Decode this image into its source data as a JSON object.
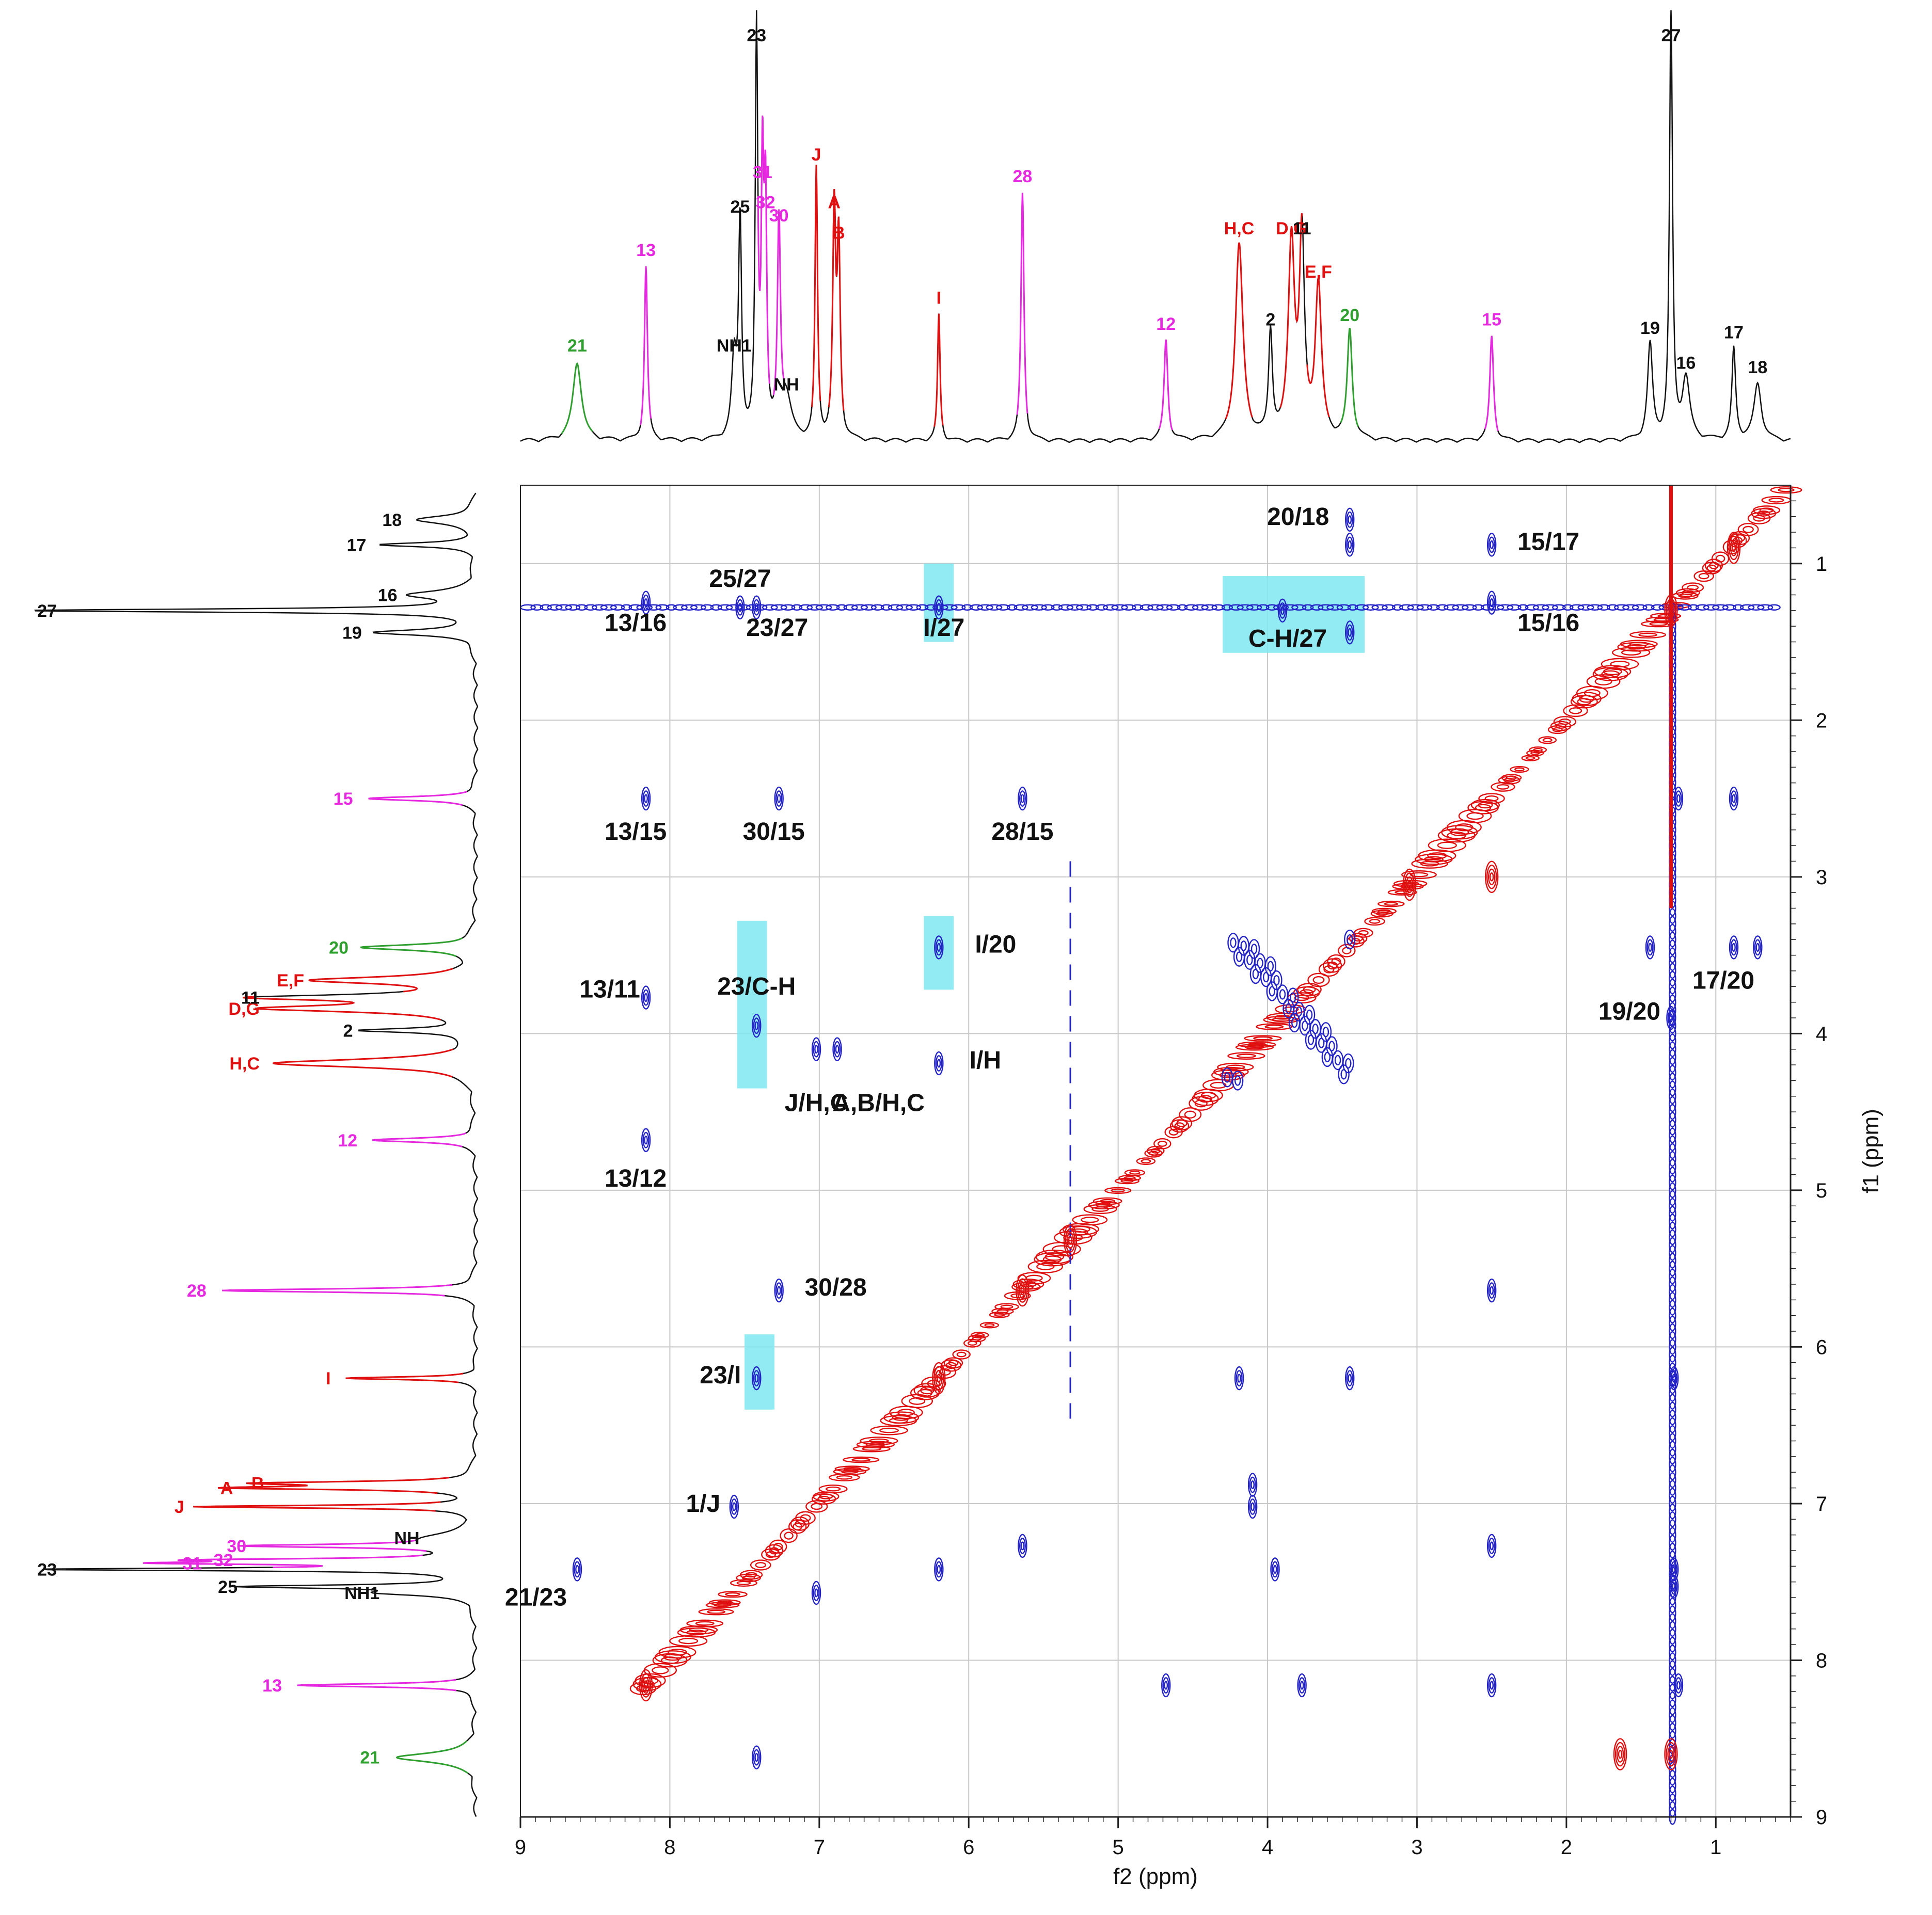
{
  "chart_data": {
    "type": "2D NMR contour map with projected 1D spectra",
    "colors": {
      "positive": "#2323c8",
      "negative": "#e01010",
      "spectrum": "#111111",
      "magenta": "#e628e0",
      "green": "#2fa02f",
      "red": "#e01010",
      "black": "#111111",
      "highlight": "#7fe8f0",
      "grid": "#c8c8c8"
    },
    "x_axis": {
      "label": "f2 (ppm)",
      "range": [
        9,
        0.5
      ],
      "ticks": [
        "9",
        "8",
        "7",
        "6",
        "5",
        "4",
        "3",
        "2",
        "1"
      ]
    },
    "y_axis": {
      "label": "f1 (ppm)",
      "range": [
        0.5,
        9
      ],
      "ticks": [
        "1",
        "2",
        "3",
        "4",
        "5",
        "6",
        "7",
        "8",
        "9"
      ]
    },
    "top_peaks": [
      {
        "label": "21",
        "shift": 8.62,
        "height": 0.18,
        "width": 0.035,
        "color": "green"
      },
      {
        "label": "13",
        "shift": 8.16,
        "height": 0.4,
        "width": 0.012,
        "color": "magenta"
      },
      {
        "label": "NH1",
        "shift": 7.57,
        "height": 0.18,
        "width": 0.02,
        "color": "black"
      },
      {
        "label": "25",
        "shift": 7.53,
        "height": 0.5,
        "width": 0.012,
        "color": "black"
      },
      {
        "label": "23",
        "shift": 7.42,
        "height": 0.94,
        "width": 0.01,
        "color": "black"
      },
      {
        "label": "31",
        "shift": 7.38,
        "height": 0.58,
        "width": 0.01,
        "color": "magenta"
      },
      {
        "label": "32",
        "shift": 7.36,
        "height": 0.51,
        "width": 0.01,
        "color": "magenta"
      },
      {
        "label": "30",
        "shift": 7.27,
        "height": 0.48,
        "width": 0.012,
        "color": "magenta"
      },
      {
        "label": "NH",
        "shift": 7.22,
        "height": 0.09,
        "width": 0.04,
        "color": "black"
      },
      {
        "label": "J",
        "shift": 7.02,
        "height": 0.62,
        "width": 0.01,
        "color": "red"
      },
      {
        "label": "A",
        "shift": 6.9,
        "height": 0.51,
        "width": 0.012,
        "color": "red"
      },
      {
        "label": "B",
        "shift": 6.87,
        "height": 0.44,
        "width": 0.012,
        "color": "red"
      },
      {
        "label": "I",
        "shift": 6.2,
        "height": 0.29,
        "width": 0.01,
        "color": "red"
      },
      {
        "label": "28",
        "shift": 5.64,
        "height": 0.57,
        "width": 0.012,
        "color": "magenta"
      },
      {
        "label": "12",
        "shift": 4.68,
        "height": 0.23,
        "width": 0.015,
        "color": "magenta"
      },
      {
        "label": "H,C",
        "shift": 4.19,
        "height": 0.45,
        "width": 0.03,
        "color": "red"
      },
      {
        "label": "2",
        "shift": 3.98,
        "height": 0.24,
        "width": 0.015,
        "color": "black"
      },
      {
        "label": "D,G",
        "shift": 3.84,
        "height": 0.45,
        "width": 0.025,
        "color": "red"
      },
      {
        "label": "11",
        "shift": 3.77,
        "height": 0.45,
        "width": 0.02,
        "color": "black"
      },
      {
        "label": "E,F",
        "shift": 3.66,
        "height": 0.35,
        "width": 0.025,
        "color": "red"
      },
      {
        "label": "20",
        "shift": 3.45,
        "height": 0.25,
        "width": 0.02,
        "color": "green"
      },
      {
        "label": "15",
        "shift": 2.5,
        "height": 0.24,
        "width": 0.015,
        "color": "magenta"
      },
      {
        "label": "19",
        "shift": 1.44,
        "height": 0.22,
        "width": 0.02,
        "color": "black"
      },
      {
        "label": "16",
        "shift": 1.2,
        "height": 0.14,
        "width": 0.03,
        "color": "black"
      },
      {
        "label": "27",
        "shift": 1.3,
        "height": 1.0,
        "width": 0.012,
        "color": "black"
      },
      {
        "label": "17",
        "shift": 0.88,
        "height": 0.21,
        "width": 0.015,
        "color": "black"
      },
      {
        "label": "18",
        "shift": 0.72,
        "height": 0.13,
        "width": 0.03,
        "color": "black"
      }
    ],
    "cross_peaks": [
      {
        "label": "25/27",
        "x": 7.53,
        "y": 1.28
      },
      {
        "label": "23/27",
        "x": 7.42,
        "y": 1.28
      },
      {
        "label": "13/16",
        "x": 8.16,
        "y": 1.25
      },
      {
        "label": "I/27",
        "x": 6.2,
        "y": 1.28
      },
      {
        "label": "C-H/27",
        "x": 3.9,
        "y": 1.3
      },
      {
        "label": "20/18",
        "x": 3.45,
        "y": 0.72
      },
      {
        "label": "15/17",
        "x": 2.5,
        "y": 0.88
      },
      {
        "label": "15/16",
        "x": 2.5,
        "y": 1.25
      },
      {
        "label": "13/15",
        "x": 8.16,
        "y": 2.5
      },
      {
        "label": "30/15",
        "x": 7.27,
        "y": 2.5
      },
      {
        "label": "28/15",
        "x": 5.64,
        "y": 2.5
      },
      {
        "label": "23/C-H",
        "x": 7.42,
        "y": 3.95
      },
      {
        "label": "I/20",
        "x": 6.2,
        "y": 3.45
      },
      {
        "label": "13/11",
        "x": 8.16,
        "y": 3.77
      },
      {
        "label": "I/H",
        "x": 6.2,
        "y": 4.19
      },
      {
        "label": "J/H,C",
        "x": 7.02,
        "y": 4.1
      },
      {
        "label": "A,B/H,C",
        "x": 6.88,
        "y": 4.1
      },
      {
        "label": "19/20",
        "x": 1.44,
        "y": 3.45
      },
      {
        "label": "17/20",
        "x": 0.88,
        "y": 3.45
      },
      {
        "label": "13/12",
        "x": 8.16,
        "y": 4.68
      },
      {
        "label": "30/28",
        "x": 7.27,
        "y": 5.64
      },
      {
        "label": "23/I",
        "x": 7.42,
        "y": 6.2
      },
      {
        "label": "1/J",
        "x": 7.57,
        "y": 7.02
      },
      {
        "label": "21/23",
        "x": 8.62,
        "y": 7.42
      }
    ],
    "highlight_boxes": [
      {
        "x1": 6.3,
        "x2": 6.1,
        "y1": 1.0,
        "y2": 1.5
      },
      {
        "x1": 4.3,
        "x2": 3.35,
        "y1": 1.08,
        "y2": 1.57
      },
      {
        "x1": 7.55,
        "x2": 7.35,
        "y1": 3.28,
        "y2": 4.35
      },
      {
        "x1": 6.3,
        "x2": 6.1,
        "y1": 3.25,
        "y2": 3.72
      },
      {
        "x1": 7.5,
        "x2": 7.3,
        "y1": 5.92,
        "y2": 6.4
      }
    ],
    "extra_neg_peaks": [
      {
        "x": 5.32,
        "y": 5.32
      },
      {
        "x": 5.64,
        "y": 5.64
      },
      {
        "x": 8.16,
        "y": 8.16
      },
      {
        "x": 6.2,
        "y": 6.2
      },
      {
        "x": 1.3,
        "y": 1.3
      },
      {
        "x": 0.88,
        "y": 0.9
      },
      {
        "x": 1.64,
        "y": 8.6
      },
      {
        "x": 3.05,
        "y": 3.05
      },
      {
        "x": 2.5,
        "y": 3.0
      },
      {
        "x": 1.3,
        "y": 8.6
      }
    ]
  }
}
